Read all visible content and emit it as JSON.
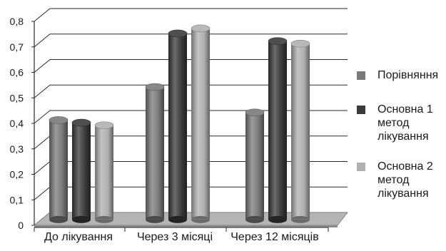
{
  "chart_data": {
    "type": "bar",
    "categories": [
      "До лікування",
      "Через 3 місяці",
      "Через 12 місяців"
    ],
    "series": [
      {
        "name": "Порівняння",
        "values": [
          0.39,
          0.52,
          0.42
        ],
        "color": "#7a7a7a"
      },
      {
        "name": "Основна 1 метод лікування",
        "values": [
          0.38,
          0.73,
          0.7
        ],
        "color": "#3b3b3b"
      },
      {
        "name": "Основна 2 метод лікування",
        "values": [
          0.37,
          0.75,
          0.69
        ],
        "color": "#b0b0b0"
      }
    ],
    "ylim": [
      0,
      0.8
    ],
    "yticks": [
      "0",
      "0,1",
      "0,2",
      "0,3",
      "0,4",
      "0,5",
      "0,6",
      "0,7",
      "0,8"
    ],
    "grid": true,
    "legend_position": "right",
    "style": "3d-cylinder"
  }
}
